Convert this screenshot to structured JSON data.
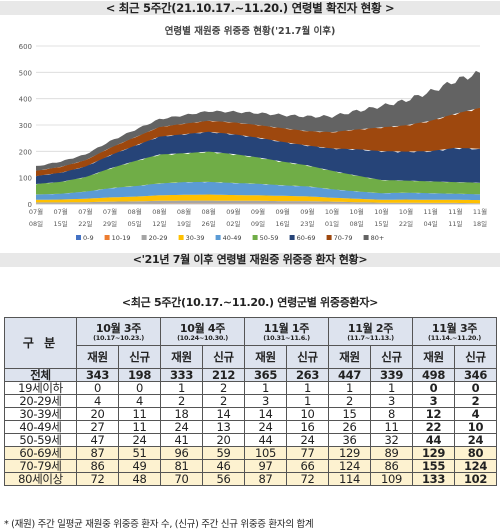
{
  "header_title": "< 최근 5주간(21.10.17.~11.20.) 연령별 확진자 현황 >",
  "chart_data": {
    "type": "area",
    "title": "연령별 재원중 위중증 현황('21.7월 이후)",
    "ylim": [
      0,
      600
    ],
    "yticks": [
      "0",
      "100",
      "200",
      "300",
      "400",
      "500",
      "600"
    ],
    "grid": true,
    "legend_position": "bottom",
    "x_months": [
      "07월",
      "07월",
      "07월",
      "07월",
      "08월",
      "08월",
      "08월",
      "08월",
      "09월",
      "09월",
      "09월",
      "09월",
      "10월",
      "10월",
      "10월",
      "10월",
      "11월",
      "11월",
      "11월"
    ],
    "x_days": [
      "08일",
      "15일",
      "22일",
      "29일",
      "05일",
      "12일",
      "19일",
      "26일",
      "02일",
      "09일",
      "16일",
      "23일",
      "01일",
      "08일",
      "15일",
      "22일",
      "04일",
      "11일",
      "18일"
    ],
    "series": [
      {
        "name": "0-9",
        "color": "#4472c4",
        "values": [
          0,
          0,
          0,
          0,
          0,
          0,
          1,
          1,
          1,
          1,
          1,
          1,
          1,
          1,
          0,
          0,
          0,
          0,
          0
        ]
      },
      {
        "name": "10-19",
        "color": "#ed7d31",
        "values": [
          1,
          1,
          1,
          1,
          1,
          2,
          2,
          2,
          2,
          2,
          2,
          2,
          2,
          1,
          1,
          1,
          1,
          1,
          0
        ]
      },
      {
        "name": "20-29",
        "color": "#a5a5a5",
        "values": [
          5,
          5,
          6,
          8,
          9,
          10,
          10,
          10,
          9,
          9,
          8,
          8,
          6,
          5,
          4,
          4,
          3,
          3,
          3
        ]
      },
      {
        "name": "30-39",
        "color": "#ffc000",
        "values": [
          10,
          11,
          13,
          16,
          18,
          21,
          22,
          23,
          22,
          21,
          20,
          18,
          15,
          13,
          11,
          12,
          12,
          12,
          12
        ]
      },
      {
        "name": "40-49",
        "color": "#5b9bd5",
        "values": [
          20,
          22,
          27,
          35,
          40,
          45,
          48,
          48,
          46,
          44,
          40,
          38,
          32,
          28,
          25,
          26,
          25,
          23,
          22
        ]
      },
      {
        "name": "50-59",
        "color": "#70ad47",
        "values": [
          40,
          45,
          55,
          75,
          95,
          110,
          110,
          115,
          110,
          100,
          90,
          80,
          70,
          60,
          50,
          46,
          45,
          44,
          44
        ]
      },
      {
        "name": "60-69",
        "color": "#264478",
        "values": [
          30,
          35,
          40,
          50,
          58,
          68,
          72,
          75,
          75,
          75,
          75,
          75,
          85,
          100,
          110,
          110,
          115,
          130,
          129
        ]
      },
      {
        "name": "70-79",
        "color": "#9e480e",
        "values": [
          20,
          22,
          24,
          28,
          32,
          36,
          40,
          42,
          45,
          48,
          52,
          55,
          62,
          75,
          90,
          100,
          115,
          130,
          155
        ]
      },
      {
        "name": "80+",
        "color": "#636363",
        "values": [
          17,
          20,
          22,
          25,
          28,
          30,
          32,
          36,
          40,
          45,
          50,
          55,
          60,
          70,
          80,
          95,
          110,
          125,
          133
        ]
      }
    ]
  },
  "sub_title": "<'21년 7월 이후 연령별 재원중 위중증 환자 현황>",
  "table_title": "<최근 5주간(10.17.~11.20.) 연령군별 위중증환자>",
  "table": {
    "gubun": "구 분",
    "weeks": [
      {
        "label": "10월 3주",
        "range": "(10.17~10.23.)"
      },
      {
        "label": "10월 4주",
        "range": "(10.24~10.30.)"
      },
      {
        "label": "11월 1주",
        "range": "(10.31~11.6.)"
      },
      {
        "label": "11월 2주",
        "range": "(11.7~11.13.)"
      },
      {
        "label": "11월 3주",
        "range": "(11.14.~11.20.)"
      }
    ],
    "col_재원": "재원",
    "col_신규": "신규",
    "rows": [
      {
        "label": "전체",
        "values": [
          "343",
          "198",
          "333",
          "212",
          "365",
          "263",
          "447",
          "339",
          "498",
          "346"
        ]
      },
      {
        "label": "19세이하",
        "values": [
          "0",
          "0",
          "1",
          "2",
          "1",
          "1",
          "1",
          "1",
          "0",
          "0"
        ]
      },
      {
        "label": "20-29세",
        "values": [
          "4",
          "4",
          "2",
          "2",
          "3",
          "1",
          "2",
          "3",
          "3",
          "2"
        ]
      },
      {
        "label": "30-39세",
        "values": [
          "20",
          "11",
          "18",
          "14",
          "14",
          "10",
          "15",
          "8",
          "12",
          "4"
        ]
      },
      {
        "label": "40-49세",
        "values": [
          "27",
          "11",
          "24",
          "13",
          "24",
          "16",
          "26",
          "11",
          "22",
          "10"
        ]
      },
      {
        "label": "50-59세",
        "values": [
          "47",
          "24",
          "41",
          "20",
          "44",
          "24",
          "36",
          "32",
          "44",
          "24"
        ]
      },
      {
        "label": "60-69세",
        "values": [
          "87",
          "51",
          "96",
          "59",
          "105",
          "77",
          "129",
          "89",
          "129",
          "80"
        ]
      },
      {
        "label": "70-79세",
        "values": [
          "86",
          "49",
          "81",
          "46",
          "97",
          "66",
          "124",
          "86",
          "155",
          "124"
        ]
      },
      {
        "label": "80세이상",
        "values": [
          "72",
          "48",
          "70",
          "56",
          "87",
          "72",
          "114",
          "109",
          "133",
          "102"
        ]
      }
    ]
  },
  "footnote": "* (재원) 주간 일평균 재원중 위중증 환자 수, (신규) 주간 신규 위중증 환자의 합계"
}
